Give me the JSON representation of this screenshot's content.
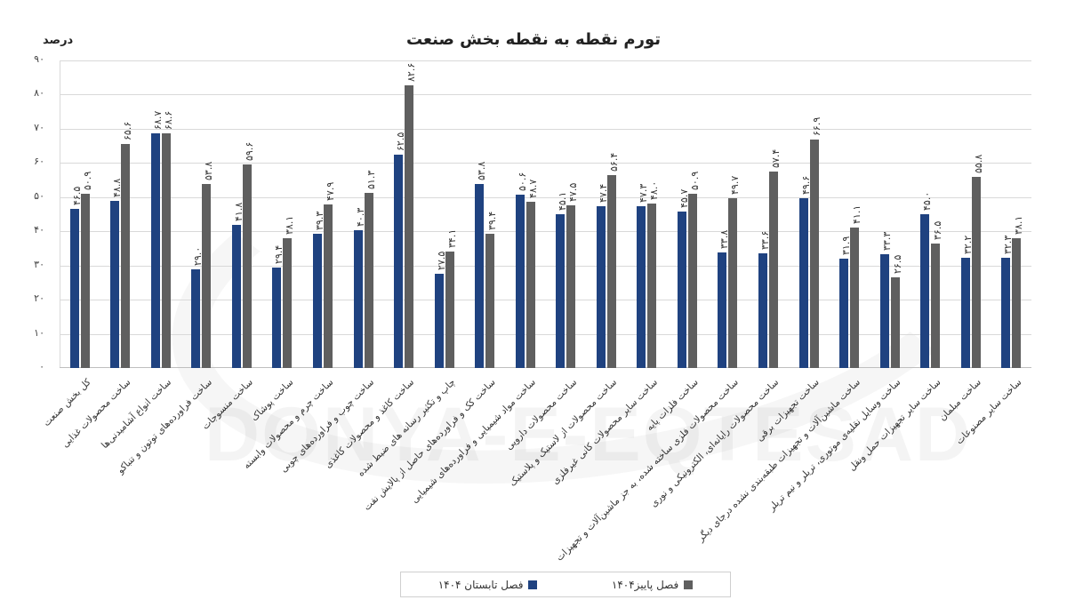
{
  "chart_data": {
    "type": "bar",
    "title": "تورم نقطه به نقطه بخش صنعت",
    "ylabel": "درصد",
    "xlabel": "",
    "ylim": [
      0,
      90
    ],
    "yticks": [
      "۰",
      "۱۰",
      "۲۰",
      "۳۰",
      "۴۰",
      "۵۰",
      "۶۰",
      "۷۰",
      "۸۰",
      "۹۰"
    ],
    "grid": true,
    "legend_position": "bottom",
    "categories": [
      "کل بخش صنعت",
      "ساخت محصولات غذایی",
      "ساخت انواع آشامیدنی‌ها",
      "ساخت فراورده‌های توتون و تنباکو",
      "ساخت منسوجات",
      "ساخت پوشاک",
      "ساخت چرم و محصولات وابسته",
      "ساخت چوب و فراورده‌های چوبی",
      "ساخت کاغذ و محصولات کاغذی",
      "چاپ و تکثیر رسانه های ضبط شده",
      "ساخت کک و فراورده‌های حاصل از پالایش نفت",
      "ساخت مواد شیمیایی و فراورده‌های شیمیایی",
      "ساخت محصولات دارویی",
      "ساخت محصولات از لاستیک و پلاستیک",
      "ساخت سایر محصولات کانی غیرفلزی",
      "ساخت فلزات پایه",
      "ساخت محصولات فلزی ساخته شده، به جز ماشین‌آلات و تجهیزات",
      "ساخت محصولات رایانه‌ای، الکترونیکی و نوری",
      "ساخت تجهیزات برقی",
      "ساخت ماشین‌آلات و تجهیزات طبقه‌بندی نشده درجای دیگر",
      "ساخت وسایل نقلیه‌ی موتوری، تریلر و نیم تریلر",
      "ساخت سایر تجهیزات حمل ونقل",
      "ساخت مبلمان",
      "ساخت سایر مصنوعات"
    ],
    "series": [
      {
        "name": "فصل تابستان ۱۴۰۴",
        "color": "#1f4280",
        "values": [
          46.5,
          48.8,
          68.7,
          29.0,
          41.8,
          29.4,
          39.3,
          40.3,
          62.5,
          27.5,
          53.8,
          50.6,
          45.1,
          47.4,
          47.3,
          45.7,
          33.8,
          33.6,
          49.6,
          31.9,
          33.3,
          45.0,
          32.2,
          32.3
        ],
        "labels": [
          "۴۶.۵",
          "۴۸.۸",
          "۶۸.۷",
          "۲۹.۰",
          "۴۱.۸",
          "۲۹.۴",
          "۳۹.۳",
          "۴۰.۳",
          "۶۲.۵",
          "۲۷.۵",
          "۵۳.۸",
          "۵۰.۶",
          "۴۵.۱",
          "۴۷.۴",
          "۴۷.۳",
          "۴۵.۷",
          "۳۳.۸",
          "۳۳.۶",
          "۴۹.۶",
          "۳۱.۹",
          "۳۳.۳",
          "۴۵.۰",
          "۳۲.۲",
          "۳۲.۳"
        ]
      },
      {
        "name": "فصل پاییز۱۴۰۴",
        "color": "#5f5f5f",
        "values": [
          50.9,
          65.6,
          68.6,
          53.8,
          59.6,
          38.1,
          47.9,
          51.3,
          82.6,
          34.1,
          39.4,
          48.7,
          47.5,
          56.4,
          48.0,
          50.9,
          49.7,
          57.4,
          66.9,
          41.1,
          26.5,
          36.5,
          55.8,
          38.1
        ],
        "labels": [
          "۵۰.۹",
          "۶۵.۶",
          "۶۸.۶",
          "۵۳.۸",
          "۵۹.۶",
          "۳۸.۱",
          "۴۷.۹",
          "۵۱.۳",
          "۸۲.۶",
          "۳۴.۱",
          "۳۹.۴",
          "۴۸.۷",
          "۴۷.۵",
          "۵۶.۴",
          "۴۸.۰",
          "۵۰.۹",
          "۴۹.۷",
          "۵۷.۴",
          "۶۶.۹",
          "۴۱.۱",
          "۲۶.۵",
          "۳۶.۵",
          "۵۵.۸",
          "۳۸.۱"
        ]
      }
    ]
  },
  "header": {
    "title": "تورم نقطه به نقطه بخش صنعت",
    "unit": "درصد"
  },
  "legend": {
    "items": [
      {
        "label": "فصل پاییز۱۴۰۴",
        "color": "#5f5f5f"
      },
      {
        "label": "فصل تابستان ۱۴۰۴",
        "color": "#1f4280"
      }
    ]
  },
  "watermark": {
    "text": "DONYA-E-EQTESAD"
  }
}
